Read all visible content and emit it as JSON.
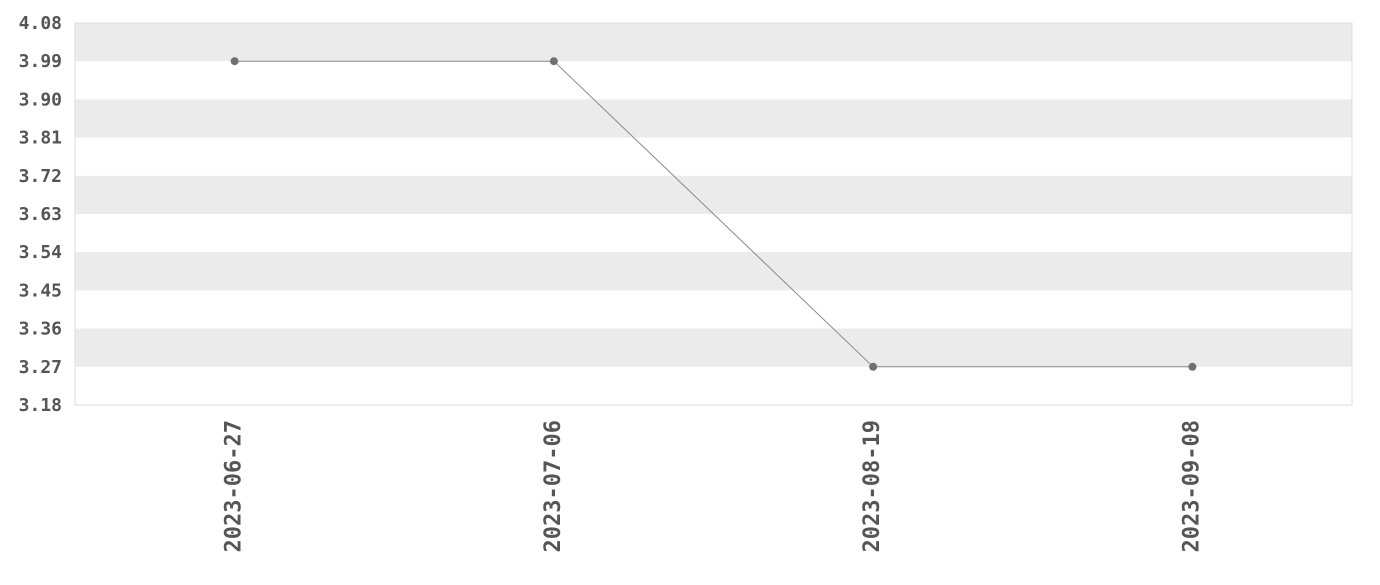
{
  "chart_data": {
    "type": "line",
    "title": "",
    "xlabel": "",
    "ylabel": "",
    "categories": [
      "2023-06-27",
      "2023-07-06",
      "2023-08-19",
      "2023-09-08"
    ],
    "series": [
      {
        "values": [
          3.99,
          3.99,
          3.27,
          3.27
        ]
      }
    ],
    "ylim": [
      3.18,
      4.08
    ],
    "yticks": [
      "3.18",
      "3.27",
      "3.36",
      "3.45",
      "3.54",
      "3.63",
      "3.72",
      "3.81",
      "3.90",
      "3.99",
      "4.08"
    ],
    "grid": "alternating horizontal bands",
    "legend": "none",
    "colors": {
      "line": "#888888",
      "marker": "#707070",
      "band": "#ebebeb",
      "border": "#dddddd",
      "text": "#555555"
    }
  }
}
